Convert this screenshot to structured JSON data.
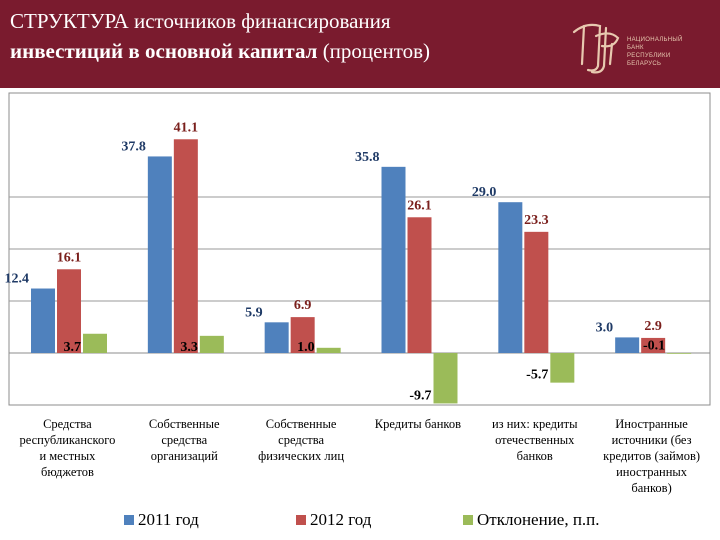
{
  "header": {
    "title_line1_caps": "СТРУКТУРА",
    "title_line1_rest": " источников финансирования",
    "title_line2_bold": "инвестиций в основной капитал",
    "title_line2_rest": "  (процентов)",
    "logo_text": "НАЦИОНАЛЬНЫЙ\nБАНК\nРЕСПУБЛИКИ\nБЕЛАРУСЬ"
  },
  "colors": {
    "header_bg": "#7a1b2e",
    "series_2011": "#4f81bd",
    "series_2012": "#c0504d",
    "series_dev": "#9bbb59"
  },
  "chart_data": {
    "type": "bar",
    "categories": [
      "Средства республиканского и местных бюджетов",
      "Собственные средства организаций",
      "Собственные средства физических лиц",
      "Кредиты банков",
      "из них: кредиты отечественных банков",
      "Иностранные источники (без кредитов (займов) иностранных банков)"
    ],
    "category_lines": [
      [
        "Средства",
        "республиканского",
        "и местных",
        "бюджетов"
      ],
      [
        "Собственные",
        "средства",
        "организаций"
      ],
      [
        "Собственные",
        "средства",
        "физических лиц"
      ],
      [
        "Кредиты банков"
      ],
      [
        "из них: кредиты",
        "отечественных",
        "банков"
      ],
      [
        "Иностранные",
        "источники (без",
        "кредитов (займов)",
        "иностранных",
        "банков)"
      ]
    ],
    "series": [
      {
        "name": "2011 год",
        "values": [
          12.4,
          37.8,
          5.9,
          35.8,
          29.0,
          3.0
        ],
        "labels": [
          "12.4",
          "37.8",
          "5.9",
          "35.8",
          "29.0",
          "3.0"
        ]
      },
      {
        "name": "2012 год",
        "values": [
          16.1,
          41.1,
          6.9,
          26.1,
          23.3,
          2.9
        ],
        "labels": [
          "16.1",
          "41.1",
          "6.9",
          "26.1",
          "23.3",
          "2.9"
        ]
      },
      {
        "name": "Отклонение, п.п.",
        "values": [
          3.7,
          3.3,
          1.0,
          -9.7,
          -5.7,
          -0.1
        ],
        "labels": [
          "3.7",
          "3.3",
          "1.0",
          "-9.7",
          "-5.7",
          "-0.1"
        ]
      }
    ],
    "ylim": [
      -10,
      45
    ],
    "grid": true,
    "legend_position": "bottom"
  }
}
